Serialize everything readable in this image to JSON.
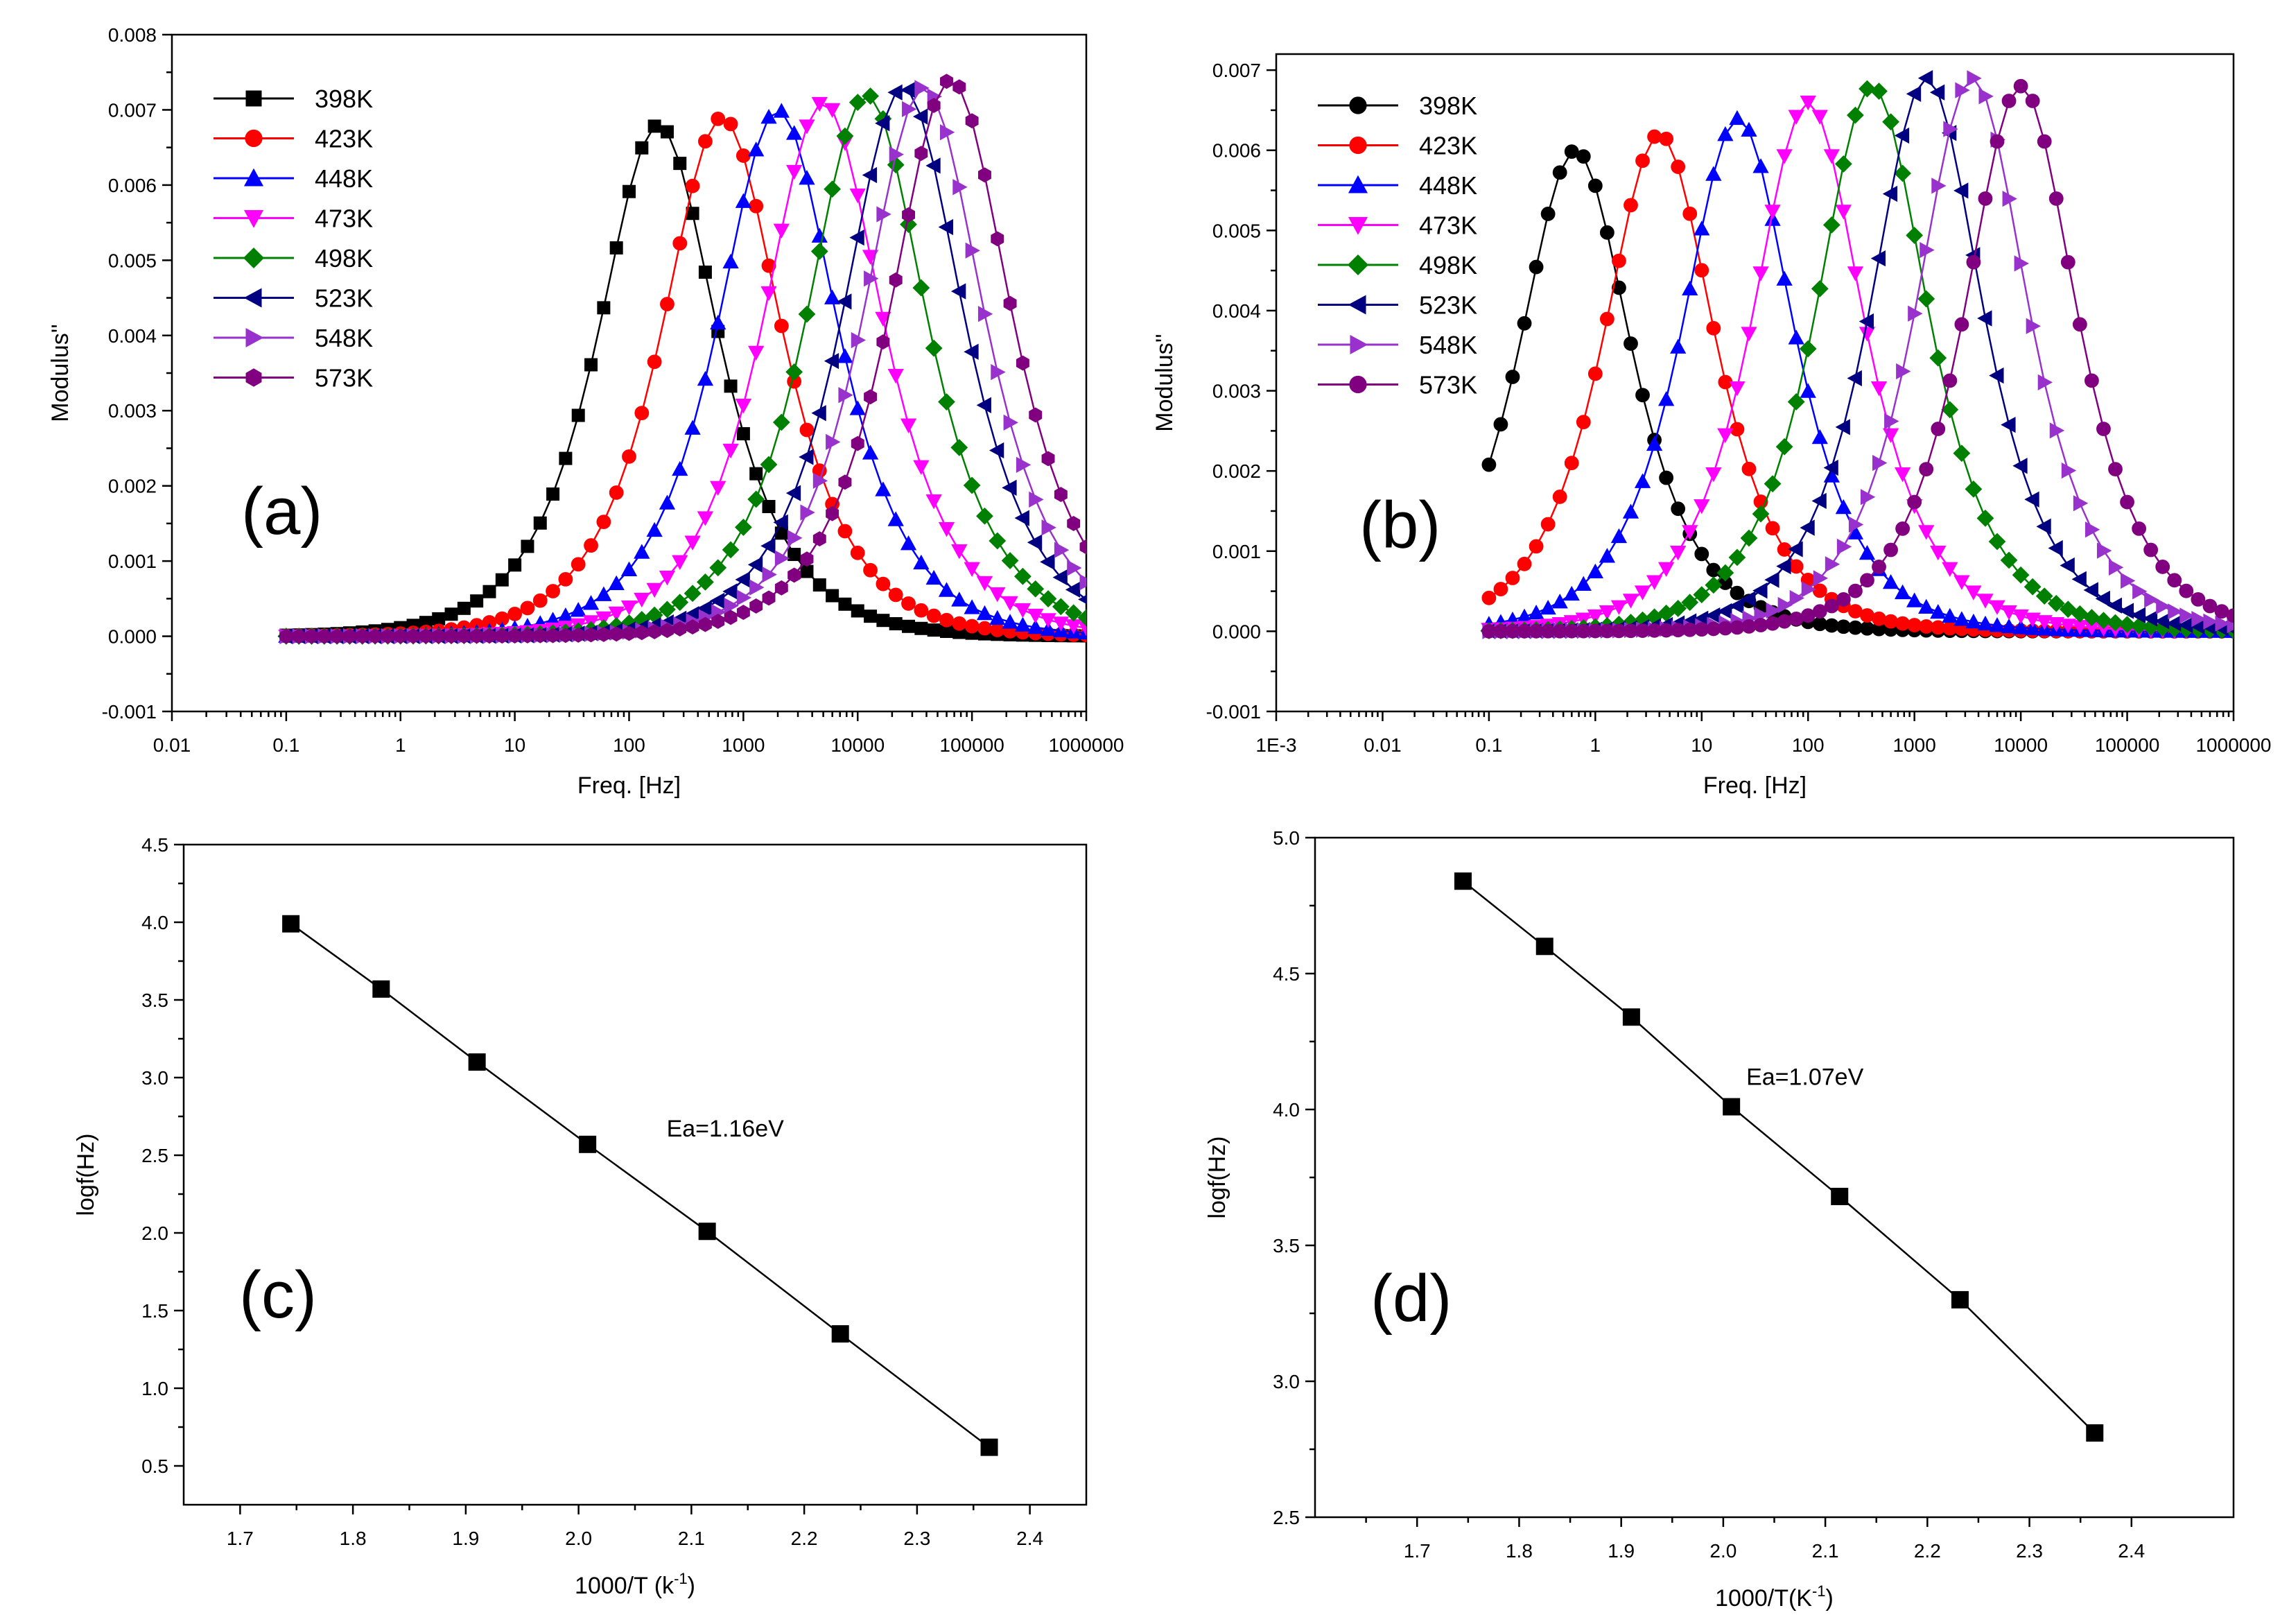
{
  "chart_data": [
    {
      "id": "a",
      "type": "line",
      "panel_label": "(a)",
      "xlabel": "Freq. [Hz]",
      "ylabel": "Modulus''",
      "xscale": "log",
      "xlim": [
        0.01,
        1000000
      ],
      "ylim": [
        -0.001,
        0.008
      ],
      "xticks": [
        "0.01",
        "0.1",
        "1",
        "10",
        "100",
        "1000",
        "10000",
        "100000",
        "1000000"
      ],
      "yticks": [
        "-0.001",
        "0.000",
        "0.001",
        "0.002",
        "0.003",
        "0.004",
        "0.005",
        "0.006",
        "0.007",
        "0.008"
      ],
      "legend_position": "top-left",
      "x_range": [
        0.1,
        1000000
      ],
      "series": [
        {
          "name": "398K",
          "color": "#000000",
          "marker": "square",
          "peak_freq": 180,
          "peak_value": 0.0068
        },
        {
          "name": "423K",
          "color": "#ff0000",
          "marker": "circle",
          "peak_freq": 650,
          "peak_value": 0.0069
        },
        {
          "name": "448K",
          "color": "#0000ff",
          "marker": "triangle-up",
          "peak_freq": 2000,
          "peak_value": 0.007
        },
        {
          "name": "473K",
          "color": "#ff00ff",
          "marker": "triangle-down",
          "peak_freq": 5000,
          "peak_value": 0.0071
        },
        {
          "name": "498K",
          "color": "#008000",
          "marker": "diamond",
          "peak_freq": 12000,
          "peak_value": 0.0072
        },
        {
          "name": "523K",
          "color": "#000080",
          "marker": "triangle-left",
          "peak_freq": 25000,
          "peak_value": 0.0073
        },
        {
          "name": "548K",
          "color": "#9932cc",
          "marker": "triangle-right",
          "peak_freq": 38000,
          "peak_value": 0.0073
        },
        {
          "name": "573K",
          "color": "#800080",
          "marker": "hexagon",
          "peak_freq": 65000,
          "peak_value": 0.0074
        }
      ]
    },
    {
      "id": "b",
      "type": "line",
      "panel_label": "(b)",
      "xlabel": "Freq. [Hz]",
      "ylabel": "Modulus''",
      "xscale": "log",
      "xlim": [
        0.001,
        1000000
      ],
      "ylim": [
        -0.001,
        0.0072
      ],
      "xticks": [
        "1E-3",
        "0.01",
        "0.1",
        "1",
        "10",
        "100",
        "1000",
        "10000",
        "100000",
        "1000000"
      ],
      "yticks": [
        "-0.001",
        "0.000",
        "0.001",
        "0.002",
        "0.003",
        "0.004",
        "0.005",
        "0.006",
        "0.007"
      ],
      "legend_position": "top-left",
      "x_range": [
        0.1,
        1000000
      ],
      "series": [
        {
          "name": "398K",
          "color": "#000000",
          "marker": "circle",
          "peak_freq": 0.65,
          "peak_value": 0.006
        },
        {
          "name": "423K",
          "color": "#ff0000",
          "marker": "circle",
          "peak_freq": 4,
          "peak_value": 0.0062
        },
        {
          "name": "448K",
          "color": "#0000ff",
          "marker": "triangle-up",
          "peak_freq": 22,
          "peak_value": 0.0064
        },
        {
          "name": "473K",
          "color": "#ff00ff",
          "marker": "triangle-down",
          "peak_freq": 100,
          "peak_value": 0.0066
        },
        {
          "name": "498K",
          "color": "#008000",
          "marker": "diamond",
          "peak_freq": 400,
          "peak_value": 0.0068
        },
        {
          "name": "523K",
          "color": "#000080",
          "marker": "triangle-left",
          "peak_freq": 1300,
          "peak_value": 0.0069
        },
        {
          "name": "548K",
          "color": "#9932cc",
          "marker": "triangle-right",
          "peak_freq": 3500,
          "peak_value": 0.0069
        },
        {
          "name": "573K",
          "color": "#800080",
          "marker": "circle",
          "peak_freq": 10000,
          "peak_value": 0.0068
        }
      ]
    },
    {
      "id": "c",
      "type": "line",
      "panel_label": "(c)",
      "xlabel": "1000/T (k",
      "xlabel_sup": "-1",
      "xlabel_end": ")",
      "ylabel": "logf(Hz)",
      "xlim": [
        1.65,
        2.45
      ],
      "ylim": [
        0.25,
        4.5
      ],
      "xticks": [
        "1.7",
        "1.8",
        "1.9",
        "2.0",
        "2.1",
        "2.2",
        "2.3",
        "2.4"
      ],
      "yticks": [
        "0.5",
        "1.0",
        "1.5",
        "2.0",
        "2.5",
        "3.0",
        "3.5",
        "4.0",
        "4.5"
      ],
      "annotation": "Ea=1.16eV",
      "annotation_at": [
        2.13,
        2.62
      ],
      "points": [
        [
          1.745,
          3.99
        ],
        [
          1.825,
          3.57
        ],
        [
          1.91,
          3.1
        ],
        [
          2.008,
          2.57
        ],
        [
          2.114,
          2.01
        ],
        [
          2.232,
          1.35
        ],
        [
          2.364,
          0.62
        ]
      ]
    },
    {
      "id": "d",
      "type": "line",
      "panel_label": "(d)",
      "xlabel": "1000/T(K",
      "xlabel_sup": "-1",
      "xlabel_end": ")",
      "ylabel": "logf(Hz)",
      "xlim": [
        1.6,
        2.5
      ],
      "ylim": [
        2.5,
        5.0
      ],
      "xticks": [
        "1.7",
        "1.8",
        "1.9",
        "2.0",
        "2.1",
        "2.2",
        "2.3",
        "2.4"
      ],
      "yticks": [
        "2.5",
        "3.0",
        "3.5",
        "4.0",
        "4.5",
        "5.0"
      ],
      "annotation": "Ea=1.07eV",
      "annotation_at": [
        2.08,
        4.09
      ],
      "points": [
        [
          1.745,
          4.84
        ],
        [
          1.825,
          4.6
        ],
        [
          1.91,
          4.34
        ],
        [
          2.008,
          4.01
        ],
        [
          2.114,
          3.68
        ],
        [
          2.232,
          3.3
        ],
        [
          2.364,
          2.81
        ]
      ]
    }
  ]
}
